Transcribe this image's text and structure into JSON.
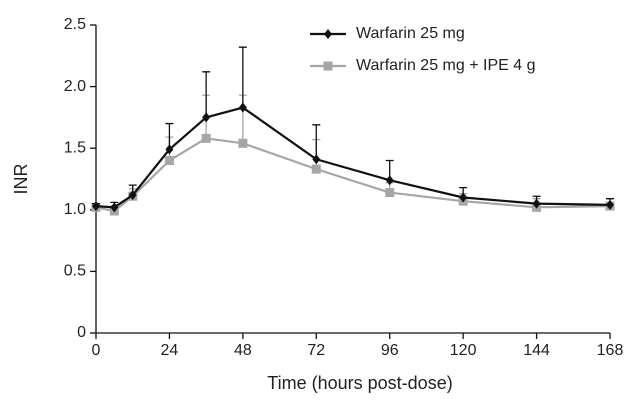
{
  "chart_data": {
    "type": "line",
    "x_label": "Time (hours post-dose)",
    "y_label": "INR",
    "x": [
      0,
      6,
      12,
      24,
      36,
      48,
      72,
      96,
      120,
      144,
      168
    ],
    "series": [
      {
        "name": "Warfarin 25 mg",
        "color": "#111111",
        "marker": "diamond",
        "values": [
          1.03,
          1.02,
          1.12,
          1.49,
          1.75,
          1.83,
          1.41,
          1.24,
          1.1,
          1.05,
          1.04
        ],
        "errors": [
          0.02,
          0.04,
          0.08,
          0.21,
          0.37,
          0.49,
          0.28,
          0.16,
          0.08,
          0.06,
          0.05
        ]
      },
      {
        "name": "Warfarin 25 mg + IPE 4 g",
        "color": "#a6a6a6",
        "marker": "square",
        "values": [
          1.02,
          0.99,
          1.11,
          1.4,
          1.58,
          1.54,
          1.33,
          1.14,
          1.07,
          1.02,
          1.03
        ],
        "errors": [
          0.02,
          0.04,
          0.06,
          0.19,
          0.35,
          0.39,
          0.24,
          0.08,
          0.06,
          0.07,
          0.03
        ]
      }
    ],
    "xlim": [
      0,
      168
    ],
    "xticks": [
      0,
      24,
      48,
      72,
      96,
      120,
      144,
      168
    ],
    "ylim": [
      0,
      2.5
    ],
    "yticks": [
      0,
      0.5,
      {
        "value": 1,
        "label": "1.0"
      },
      1.5,
      {
        "value": 2,
        "label": "2.0"
      },
      2.5
    ],
    "legend": "upper-right",
    "grid": false
  }
}
